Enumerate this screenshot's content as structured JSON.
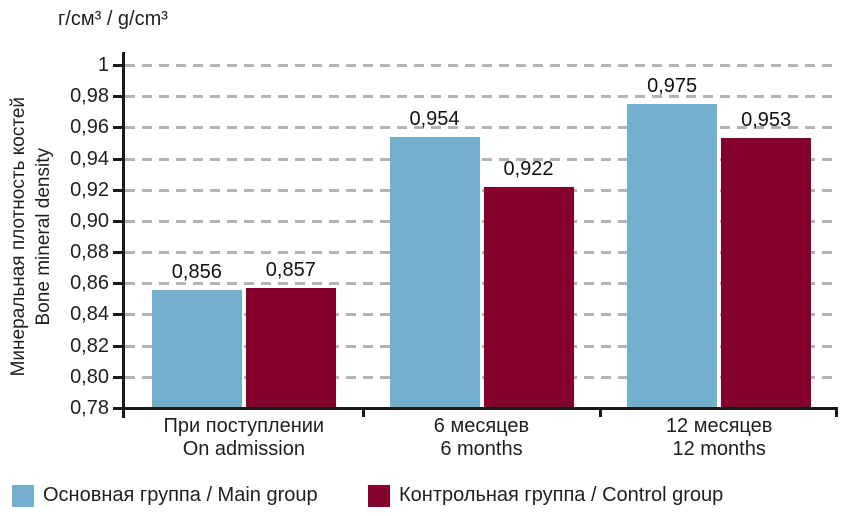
{
  "chart_data": {
    "type": "bar",
    "unit_label": "г/см³ / g/cm³",
    "ylabel": {
      "ru": "Минеральная плотность костей",
      "en": "Bone mineral density"
    },
    "ylim": [
      0.78,
      1.0
    ],
    "ytick_step": 0.02,
    "yticks": [
      {
        "label": "1",
        "value": 1.0
      },
      {
        "label": "0,98",
        "value": 0.98
      },
      {
        "label": "0,96",
        "value": 0.96
      },
      {
        "label": "0,94",
        "value": 0.94
      },
      {
        "label": "0,92",
        "value": 0.92
      },
      {
        "label": "0,90",
        "value": 0.9
      },
      {
        "label": "0,88",
        "value": 0.88
      },
      {
        "label": "0,86",
        "value": 0.86
      },
      {
        "label": "0,84",
        "value": 0.84
      },
      {
        "label": "0,82",
        "value": 0.82
      },
      {
        "label": "0,80",
        "value": 0.8
      },
      {
        "label": "0,78",
        "value": 0.78
      }
    ],
    "categories": [
      {
        "ru": "При поступлении",
        "en": "On admission"
      },
      {
        "ru": "6 месяцев",
        "en": "6 months"
      },
      {
        "ru": "12 месяцев",
        "en": "12 months"
      }
    ],
    "series": [
      {
        "name": "Основная группа / Main group",
        "color": "#73AFCC",
        "values": [
          0.856,
          0.954,
          0.975
        ],
        "labels": [
          "0,856",
          "0,954",
          "0,975"
        ]
      },
      {
        "name": "Контрольная группа / Control group",
        "color": "#85002D",
        "values": [
          0.857,
          0.922,
          0.953
        ],
        "labels": [
          "0,857",
          "0,922",
          "0,953"
        ]
      }
    ],
    "grid": "horizontal-dashed",
    "legend_position": "bottom"
  },
  "colors": {
    "grid": "#b2b2b7",
    "axis": "#1a1a1a",
    "text": "#1f1f1f"
  }
}
